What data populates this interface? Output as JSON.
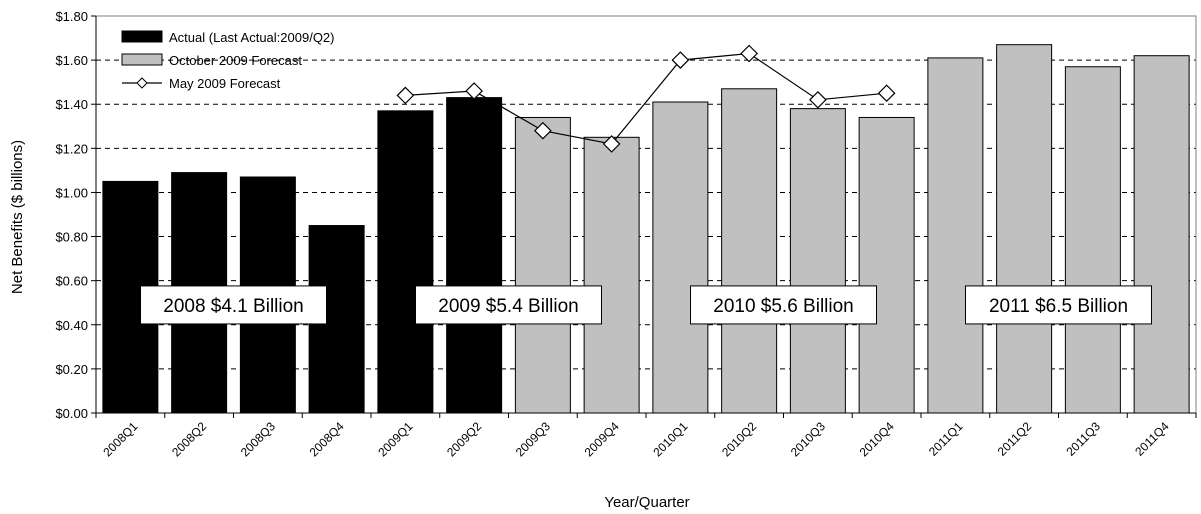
{
  "chart_data": {
    "type": "bar",
    "title": "",
    "xlabel": "Year/Quarter",
    "ylabel": "Net Benefits ($ billions)",
    "ylim": [
      0,
      1.8
    ],
    "yticks": [
      "$0.00",
      "$0.20",
      "$0.40",
      "$0.60",
      "$0.80",
      "$1.00",
      "$1.20",
      "$1.40",
      "$1.60",
      "$1.80"
    ],
    "grid": "horizontal dashed",
    "legend_position": "top-left",
    "categories": [
      "2008Q1",
      "2008Q2",
      "2008Q3",
      "2008Q4",
      "2009Q1",
      "2009Q2",
      "2009Q3",
      "2009Q4",
      "2010Q1",
      "2010Q2",
      "2010Q3",
      "2010Q4",
      "2011Q1",
      "2011Q2",
      "2011Q3",
      "2011Q4"
    ],
    "series": [
      {
        "name": "Actual (Last Actual:2009/Q2)",
        "kind": "bar",
        "color": "#000000",
        "values": [
          1.05,
          1.09,
          1.07,
          0.85,
          1.37,
          1.43,
          null,
          null,
          null,
          null,
          null,
          null,
          null,
          null,
          null,
          null
        ]
      },
      {
        "name": "October 2009 Forecast",
        "kind": "bar",
        "color": "#c0c0c0",
        "values": [
          null,
          null,
          null,
          null,
          null,
          null,
          1.34,
          1.25,
          1.41,
          1.47,
          1.38,
          1.34,
          1.61,
          1.67,
          1.57,
          1.62
        ]
      },
      {
        "name": "May 2009 Forecast",
        "kind": "line",
        "marker": "diamond",
        "color": "#000000",
        "values": [
          null,
          null,
          null,
          null,
          1.44,
          1.46,
          1.28,
          1.22,
          1.6,
          1.63,
          1.42,
          1.45,
          null,
          null,
          null,
          null
        ]
      }
    ],
    "annotations": [
      {
        "text": "2008 $4.1 Billion",
        "year_index": 0
      },
      {
        "text": "2009 $5.4 Billion",
        "year_index": 1
      },
      {
        "text": "2010 $5.6 Billion",
        "year_index": 2
      },
      {
        "text": "2011 $6.5 Billion",
        "year_index": 3
      }
    ]
  }
}
